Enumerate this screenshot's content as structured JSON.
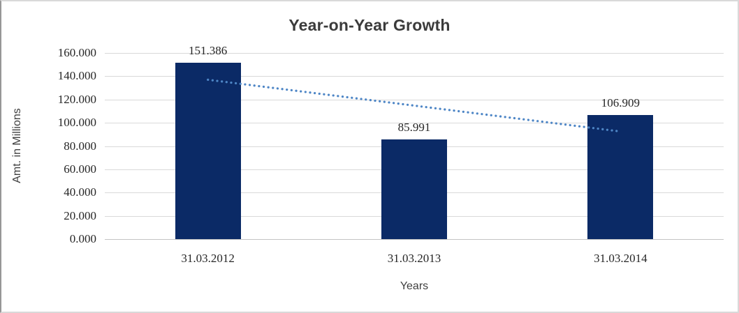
{
  "chart_data": {
    "type": "bar",
    "title": "Year-on-Year Growth",
    "xlabel": "Years",
    "ylabel": "Amt. in Millions",
    "categories": [
      "31.03.2012",
      "31.03.2013",
      "31.03.2014"
    ],
    "values": [
      151.386,
      85.991,
      106.909
    ],
    "data_labels": [
      "151.386",
      "85.991",
      "106.909"
    ],
    "ylim": [
      0,
      160
    ],
    "y_tick_step": 20,
    "y_tick_labels": [
      "0.000",
      "20.000",
      "40.000",
      "60.000",
      "80.000",
      "100.000",
      "120.000",
      "140.000",
      "160.000"
    ],
    "grid": "horizontal",
    "legend": "none",
    "bar_color": "#0b2a66",
    "trendline": {
      "type": "linear",
      "style": "dotted",
      "color": "#4e86c6"
    }
  }
}
